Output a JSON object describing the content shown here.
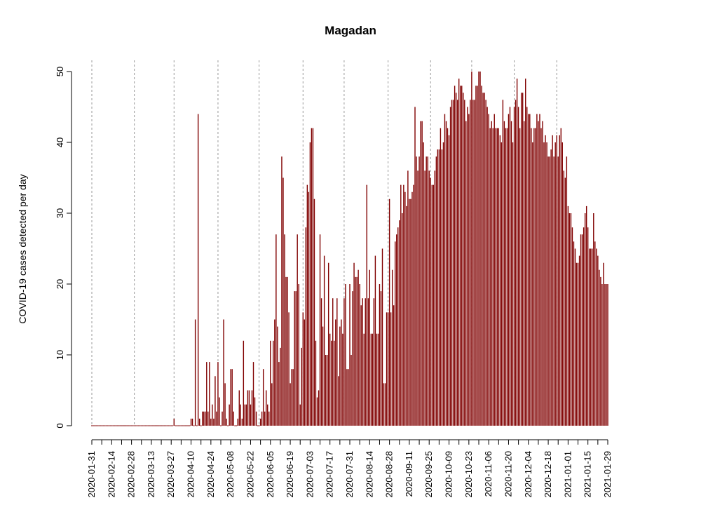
{
  "chart_data": {
    "type": "bar",
    "title": "Magadan",
    "ylabel": "COVID-19 cases detected per day",
    "xlabel": "",
    "ylim": [
      0,
      50
    ],
    "yticks": [
      0,
      10,
      20,
      30,
      40,
      50
    ],
    "xlim": [
      "2020-01-31",
      "2021-01-29"
    ],
    "x_tick_labels": [
      "2020-01-31",
      "2020-02-14",
      "2020-02-28",
      "2020-03-13",
      "2020-03-27",
      "2020-04-10",
      "2020-04-24",
      "2020-05-08",
      "2020-05-22",
      "2020-06-05",
      "2020-06-19",
      "2020-07-03",
      "2020-07-17",
      "2020-07-31",
      "2020-08-14",
      "2020-08-28",
      "2020-09-11",
      "2020-09-25",
      "2020-10-09",
      "2020-10-23",
      "2020-11-06",
      "2020-11-20",
      "2020-12-04",
      "2020-12-18",
      "2021-01-01",
      "2021-01-15",
      "2021-01-29"
    ],
    "grid_lines_at": [
      "2020-01-31",
      "2020-03-01",
      "2020-03-29",
      "2020-04-29",
      "2020-05-28",
      "2020-06-28",
      "2020-07-27",
      "2020-08-27",
      "2020-09-26",
      "2020-10-25",
      "2020-11-24",
      "2020-12-24"
    ],
    "bar_color": "#800000",
    "series": [
      {
        "start_date": "2020-01-31",
        "values": [
          0,
          0,
          0,
          0,
          0,
          0,
          0,
          0,
          0,
          0,
          0,
          0,
          0,
          0,
          0,
          0,
          0,
          0,
          0,
          0,
          0,
          0,
          0,
          0,
          0,
          0,
          0,
          0,
          0,
          0,
          0,
          0,
          0,
          0,
          0,
          0,
          0,
          0,
          0,
          0,
          0,
          0,
          0,
          0,
          0,
          0,
          0,
          0,
          0,
          0,
          0,
          0,
          0,
          0,
          0,
          0,
          0,
          0,
          1,
          0,
          0,
          0,
          0,
          0,
          0,
          0,
          0,
          0,
          0,
          0,
          1,
          1,
          0,
          15,
          0,
          44,
          1,
          0,
          2,
          2,
          2,
          9,
          2,
          9,
          1,
          3,
          1,
          7,
          2,
          9,
          4,
          0,
          2,
          15,
          6,
          1,
          0,
          3,
          8,
          8,
          2,
          0,
          0,
          1,
          5,
          3,
          1,
          12,
          3,
          3,
          5,
          5,
          3,
          5,
          9,
          4,
          2,
          0,
          0,
          1,
          2,
          8,
          2,
          5,
          3,
          2,
          12,
          6,
          12,
          15,
          27,
          14,
          9,
          11,
          38,
          35,
          27,
          21,
          21,
          16,
          6,
          8,
          8,
          19,
          19,
          27,
          20,
          3,
          11,
          16,
          15,
          28,
          34,
          33,
          40,
          42,
          42,
          32,
          12,
          4,
          5,
          27,
          18,
          14,
          24,
          10,
          10,
          23,
          13,
          12,
          18,
          12,
          15,
          18,
          7,
          14,
          15,
          13,
          18,
          20,
          8,
          8,
          20,
          10,
          19,
          23,
          21,
          21,
          22,
          20,
          17,
          18,
          13,
          18,
          34,
          18,
          22,
          13,
          13,
          18,
          24,
          13,
          13,
          20,
          19,
          25,
          6,
          6,
          16,
          16,
          32,
          16,
          22,
          17,
          26,
          27,
          28,
          29,
          34,
          30,
          34,
          33,
          31,
          36,
          32,
          32,
          33,
          34,
          45,
          38,
          36,
          38,
          43,
          43,
          40,
          36,
          38,
          38,
          36,
          35,
          34,
          34,
          36,
          38,
          39,
          39,
          42,
          39,
          40,
          44,
          43,
          42,
          41,
          45,
          46,
          46,
          48,
          47,
          46,
          49,
          48,
          48,
          47,
          46,
          43,
          45,
          44,
          46,
          50,
          46,
          46,
          48,
          48,
          50,
          50,
          48,
          47,
          47,
          46,
          45,
          44,
          42,
          43,
          42,
          44,
          42,
          42,
          42,
          41,
          40,
          46,
          43,
          42,
          42,
          44,
          45,
          43,
          40,
          45,
          46,
          49,
          45,
          42,
          47,
          47,
          43,
          49,
          45,
          44,
          44,
          42,
          40,
          42,
          42,
          44,
          43,
          44,
          42,
          43,
          40,
          41,
          40,
          38,
          38,
          39,
          41,
          38,
          40,
          41,
          38,
          41,
          42,
          40,
          36,
          35,
          38,
          31,
          30,
          30,
          28,
          26,
          25,
          23,
          23,
          24,
          27,
          27,
          28,
          30,
          31,
          28,
          25,
          25,
          25,
          30,
          26,
          25,
          24,
          22,
          21,
          20,
          23,
          20,
          20,
          20
        ]
      }
    ]
  }
}
